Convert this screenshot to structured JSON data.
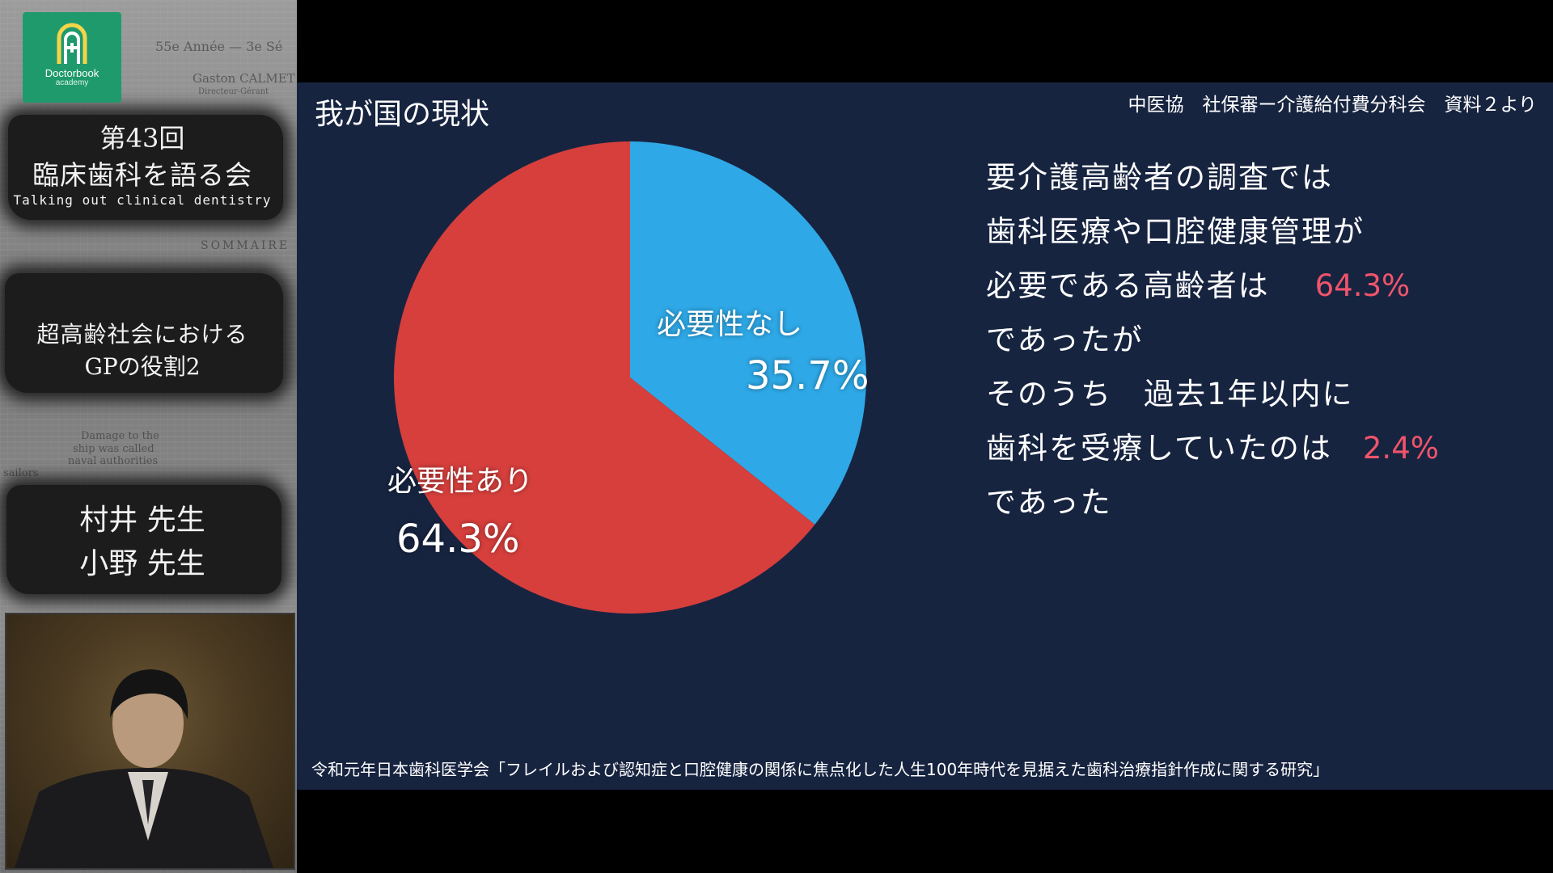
{
  "colors": {
    "slide_background": "#172440",
    "slice_needed": "#d63f3c",
    "slice_not_needed": "#2ea8e6",
    "highlight": "#f0546b",
    "logo_green": "#1f9a6d"
  },
  "sidebar": {
    "logo": {
      "icon": "doctorbook-logo-icon",
      "name": "Doctorbook",
      "sub": "academy"
    },
    "event": {
      "number": "第43回",
      "title": "臨床歯科を語る会",
      "subtitle": "Talking out clinical dentistry"
    },
    "talk": {
      "line1": "超高齢社会における",
      "line2": "GPの役割2"
    },
    "speakers": [
      "村井 先生",
      "小野 先生"
    ],
    "background_clippings": [
      "55e Année — 3e Sé",
      "Gaston CALMET",
      "Directeur-Gérant",
      "SOMMAIRE",
      "Damage to the",
      "ship was called",
      "naval authorities",
      "sailors"
    ]
  },
  "slide": {
    "title": "我が国の現状",
    "source_top": "中医協　社保審ー介護給付費分科会　資料２より",
    "summary": {
      "line1": "要介護高齢者の調査では",
      "line2": "歯科医療や口腔健康管理が",
      "line3_text": "必要である高齢者は",
      "line3_value": "64.3%",
      "line4": "であったが",
      "line5": "そのうち　過去1年以内に",
      "line6_text": "歯科を受療していたのは",
      "line6_value": "2.4%",
      "line7": "であった"
    },
    "citation": "令和元年日本歯科医学会「フレイルおよび認知症と口腔健康の関係に焦点化した人生100年時代を見据えた歯科治療指針作成に関する研究」"
  },
  "chart_data": {
    "type": "pie",
    "slices": [
      {
        "name": "必要性なし",
        "label": "35.7%",
        "value": 35.7
      },
      {
        "name": "必要性あり",
        "label": "64.3%",
        "value": 64.3
      }
    ],
    "start": "12 o'clock",
    "direction": "clockwise"
  }
}
